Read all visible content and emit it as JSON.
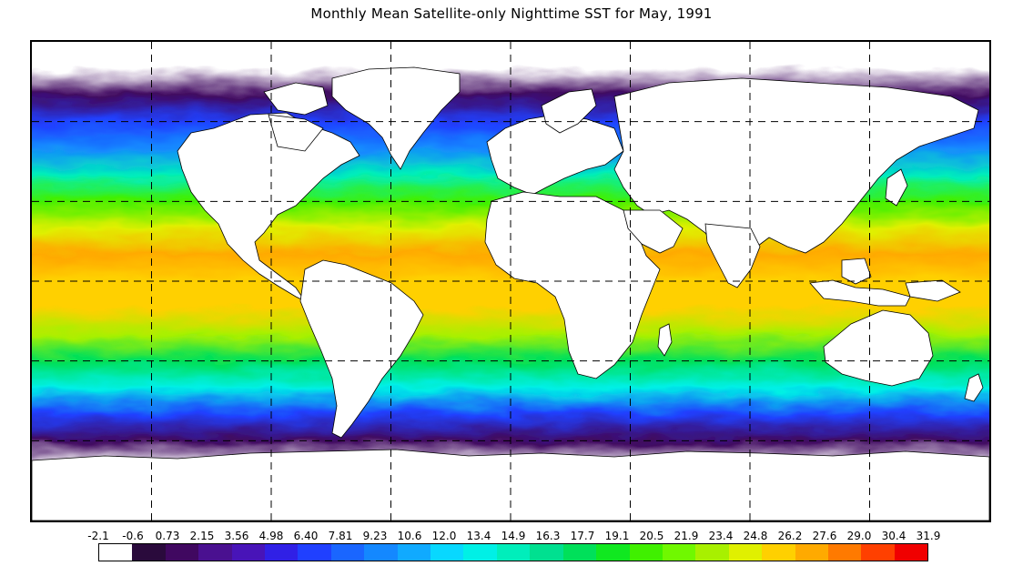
{
  "title": "Monthly Mean Satellite-only Nighttime SST for May, 1991",
  "colorbar": {
    "labels": [
      "-2.1",
      "-0.6",
      "0.73",
      "2.15",
      "3.56",
      "4.98",
      "6.40",
      "7.81",
      "9.23",
      "10.6",
      "12.0",
      "13.4",
      "14.9",
      "16.3",
      "17.7",
      "19.1",
      "20.5",
      "21.9",
      "23.4",
      "24.8",
      "26.2",
      "27.6",
      "29.0",
      "30.4",
      "31.9"
    ],
    "colors": [
      "#ffffff",
      "#2a0a3c",
      "#400860",
      "#4a1090",
      "#4814b8",
      "#3020e6",
      "#2040ff",
      "#1a66ff",
      "#1488ff",
      "#10aaff",
      "#08d8ff",
      "#00f0e6",
      "#00eebb",
      "#00e090",
      "#00e05a",
      "#10e820",
      "#40f000",
      "#70f800",
      "#a8f000",
      "#e0f000",
      "#ffd000",
      "#ffaa00",
      "#ff7a00",
      "#ff4000",
      "#f00000"
    ]
  },
  "chart_data": {
    "type": "heatmap",
    "title": "Monthly Mean Satellite-only Nighttime SST for May, 1991",
    "projection": "equirectangular",
    "extent": {
      "lon": [
        -180,
        180
      ],
      "lat": [
        -90,
        90
      ]
    },
    "grid": "dashed graticule every 45 deg longitude and 30 deg latitude",
    "colorbar_ticks": [
      -2.1,
      -0.6,
      0.73,
      2.15,
      3.56,
      4.98,
      6.4,
      7.81,
      9.23,
      10.6,
      12.0,
      13.4,
      14.9,
      16.3,
      17.7,
      19.1,
      20.5,
      21.9,
      23.4,
      24.8,
      26.2,
      27.6,
      29.0,
      30.4,
      31.9
    ],
    "land_color": "#ffffff",
    "zonal_sst_profile": [
      {
        "lat": 80,
        "sst": -1.0
      },
      {
        "lat": 70,
        "sst": 1.5
      },
      {
        "lat": 60,
        "sst": 6.5
      },
      {
        "lat": 50,
        "sst": 10.0
      },
      {
        "lat": 40,
        "sst": 15.5
      },
      {
        "lat": 30,
        "sst": 21.0
      },
      {
        "lat": 20,
        "sst": 25.5
      },
      {
        "lat": 10,
        "sst": 28.0
      },
      {
        "lat": 0,
        "sst": 27.5
      },
      {
        "lat": -10,
        "sst": 27.0
      },
      {
        "lat": -20,
        "sst": 24.0
      },
      {
        "lat": -30,
        "sst": 19.0
      },
      {
        "lat": -40,
        "sst": 13.5
      },
      {
        "lat": -50,
        "sst": 7.0
      },
      {
        "lat": -60,
        "sst": 1.0
      },
      {
        "lat": -70,
        "sst": -1.0
      }
    ]
  }
}
